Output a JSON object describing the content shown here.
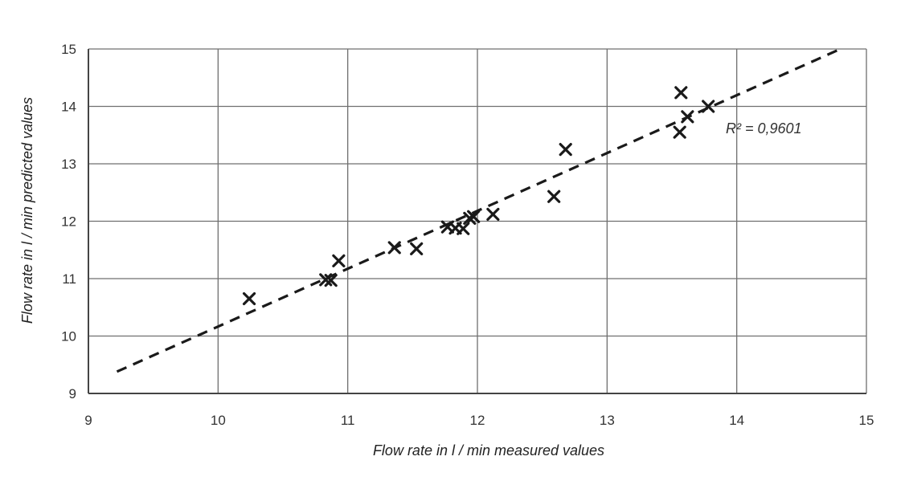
{
  "chart_data": {
    "type": "scatter",
    "title": "",
    "xlabel": "Flow rate in l / min measured values",
    "ylabel": "Flow rate in l / min predicted values",
    "xlim": [
      9,
      15
    ],
    "ylim": [
      9,
      15
    ],
    "x_ticks": [
      "9",
      "10",
      "11",
      "12",
      "13",
      "14",
      "15"
    ],
    "y_ticks": [
      "9",
      "10",
      "11",
      "12",
      "13",
      "14",
      "15"
    ],
    "grid": true,
    "marker": "x",
    "annotation": "R² = 0,9601",
    "series": [
      {
        "points": [
          {
            "x": 10.24,
            "y": 10.65
          },
          {
            "x": 10.83,
            "y": 10.98
          },
          {
            "x": 10.87,
            "y": 10.97
          },
          {
            "x": 10.93,
            "y": 11.31
          },
          {
            "x": 11.36,
            "y": 11.54
          },
          {
            "x": 11.53,
            "y": 11.52
          },
          {
            "x": 11.77,
            "y": 11.9
          },
          {
            "x": 11.83,
            "y": 11.88
          },
          {
            "x": 11.89,
            "y": 11.87
          },
          {
            "x": 11.94,
            "y": 12.05
          },
          {
            "x": 11.97,
            "y": 12.08
          },
          {
            "x": 12.12,
            "y": 12.12
          },
          {
            "x": 12.59,
            "y": 12.43
          },
          {
            "x": 12.68,
            "y": 13.25
          },
          {
            "x": 13.56,
            "y": 13.55
          },
          {
            "x": 13.57,
            "y": 14.24
          },
          {
            "x": 13.62,
            "y": 13.82
          },
          {
            "x": 13.78,
            "y": 14.0
          }
        ]
      }
    ],
    "trendline": {
      "x": [
        9.22,
        14.78
      ],
      "y": [
        9.38,
        14.98
      ]
    }
  },
  "colors": {
    "marker": "#1a1a1a",
    "trendline": "#1a1a1a",
    "grid": "#6f6f6f",
    "axis": "#444444"
  }
}
